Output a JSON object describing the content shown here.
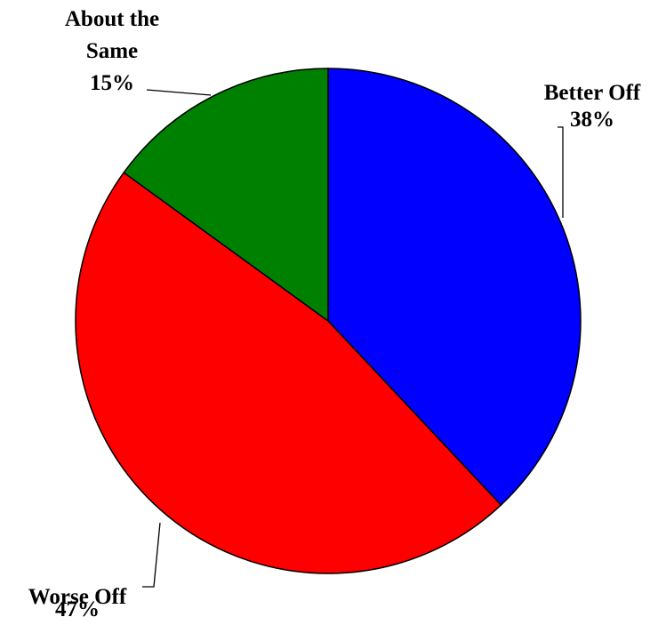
{
  "chart_data": {
    "type": "pie",
    "slices": [
      {
        "label": "Better Off",
        "value": 38,
        "display": "38%",
        "color": "#0000ff"
      },
      {
        "label": "Worse Off",
        "value": 47,
        "display": "47%",
        "color": "#ff0000"
      },
      {
        "label": "About the Same",
        "value": 15,
        "display": "15%",
        "color": "#008000"
      }
    ],
    "start": "12 o'clock",
    "direction": "clockwise",
    "legend": "none"
  }
}
